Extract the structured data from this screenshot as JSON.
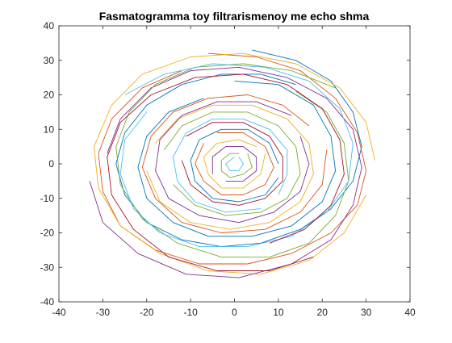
{
  "chart_data": {
    "type": "line",
    "title": "Fasmatogramma toy filtrarismenoy me echo shma",
    "xlabel": "",
    "ylabel": "",
    "xlim": [
      -40,
      40
    ],
    "ylim": [
      -40,
      40
    ],
    "x_ticks": [
      "-40",
      "-30",
      "-20",
      "-10",
      "0",
      "10",
      "20",
      "30",
      "40"
    ],
    "y_ticks": [
      "40",
      "30",
      "20",
      "10",
      "0",
      "-10",
      "-20",
      "-30",
      "-40"
    ],
    "grid": false,
    "legend": "none",
    "description_values": {
      "center": [
        0,
        0
      ],
      "max_radius": 33,
      "dense_core_radius": 12
    },
    "series_colors": [
      "#0072bd",
      "#d95319",
      "#edb120",
      "#7e2f8e",
      "#77ac30",
      "#4dbeee",
      "#a2142f"
    ],
    "series": [
      {
        "points": [
          [
            4,
            33
          ],
          [
            14,
            30
          ],
          [
            22,
            24
          ],
          [
            27,
            15
          ],
          [
            29,
            5
          ],
          [
            27,
            -5
          ],
          [
            22,
            -13
          ],
          [
            15,
            -19
          ],
          [
            6,
            -23
          ],
          [
            -3,
            -24
          ],
          [
            -12,
            -22
          ],
          [
            -20,
            -17
          ],
          [
            -25,
            -9
          ],
          [
            -27,
            0
          ],
          [
            -25,
            9
          ],
          [
            -20,
            17
          ],
          [
            -12,
            23
          ],
          [
            -3,
            26
          ],
          [
            6,
            26
          ],
          [
            14,
            23
          ]
        ]
      },
      {
        "points": [
          [
            -6,
            32
          ],
          [
            5,
            31
          ],
          [
            15,
            27
          ],
          [
            23,
            19
          ],
          [
            28,
            9
          ],
          [
            30,
            -2
          ],
          [
            28,
            -12
          ],
          [
            22,
            -20
          ],
          [
            13,
            -26
          ],
          [
            3,
            -29
          ],
          [
            -8,
            -29
          ],
          [
            -18,
            -25
          ],
          [
            -26,
            -18
          ],
          [
            -30,
            -8
          ],
          [
            -31,
            3
          ],
          [
            -28,
            13
          ],
          [
            -21,
            22
          ],
          [
            -12,
            27
          ]
        ]
      },
      {
        "points": [
          [
            32,
            1
          ],
          [
            30,
            12
          ],
          [
            24,
            22
          ],
          [
            14,
            29
          ],
          [
            2,
            32
          ],
          [
            -10,
            31
          ],
          [
            -21,
            26
          ],
          [
            -28,
            17
          ],
          [
            -32,
            5
          ],
          [
            -31,
            -7
          ],
          [
            -26,
            -18
          ],
          [
            -17,
            -26
          ],
          [
            -6,
            -31
          ],
          [
            6,
            -32
          ],
          [
            17,
            -28
          ],
          [
            25,
            -20
          ],
          [
            30,
            -9
          ]
        ]
      },
      {
        "points": [
          [
            -33,
            -5
          ],
          [
            -30,
            -17
          ],
          [
            -22,
            -26
          ],
          [
            -11,
            -32
          ],
          [
            1,
            -33
          ],
          [
            13,
            -29
          ],
          [
            22,
            -22
          ],
          [
            27,
            -12
          ],
          [
            29,
            -1
          ],
          [
            27,
            10
          ],
          [
            21,
            19
          ],
          [
            12,
            25
          ],
          [
            1,
            28
          ],
          [
            -10,
            27
          ],
          [
            -19,
            22
          ],
          [
            -26,
            13
          ],
          [
            -29,
            3
          ]
        ]
      },
      {
        "points": [
          [
            23,
            22
          ],
          [
            13,
            27
          ],
          [
            2,
            29
          ],
          [
            -9,
            28
          ],
          [
            -18,
            23
          ],
          [
            -24,
            15
          ],
          [
            -27,
            5
          ],
          [
            -26,
            -6
          ],
          [
            -21,
            -16
          ],
          [
            -13,
            -23
          ],
          [
            -3,
            -27
          ],
          [
            8,
            -27
          ],
          [
            17,
            -23
          ],
          [
            23,
            -15
          ],
          [
            26,
            -5
          ],
          [
            25,
            6
          ],
          [
            21,
            15
          ],
          [
            14,
            21
          ]
        ]
      },
      {
        "points": [
          [
            -25,
            20
          ],
          [
            -16,
            26
          ],
          [
            -5,
            29
          ],
          [
            7,
            28
          ],
          [
            17,
            24
          ],
          [
            24,
            16
          ],
          [
            27,
            6
          ],
          [
            26,
            -5
          ],
          [
            21,
            -14
          ],
          [
            13,
            -21
          ],
          [
            3,
            -24
          ],
          [
            -8,
            -24
          ],
          [
            -17,
            -20
          ],
          [
            -23,
            -13
          ],
          [
            -26,
            -3
          ],
          [
            -25,
            7
          ],
          [
            -20,
            15
          ]
        ]
      },
      {
        "points": [
          [
            18,
            -27
          ],
          [
            8,
            -31
          ],
          [
            -4,
            -31
          ],
          [
            -15,
            -27
          ],
          [
            -23,
            -19
          ],
          [
            -28,
            -9
          ],
          [
            -29,
            2
          ],
          [
            -26,
            12
          ],
          [
            -19,
            20
          ],
          [
            -9,
            25
          ],
          [
            2,
            26
          ],
          [
            12,
            23
          ],
          [
            20,
            16
          ],
          [
            24,
            7
          ],
          [
            25,
            -3
          ],
          [
            22,
            -12
          ],
          [
            16,
            -19
          ],
          [
            8,
            -23
          ]
        ]
      },
      {
        "points": [
          [
            0,
            24
          ],
          [
            10,
            23
          ],
          [
            18,
            17
          ],
          [
            22,
            8
          ],
          [
            23,
            -2
          ],
          [
            20,
            -11
          ],
          [
            13,
            -18
          ],
          [
            4,
            -21
          ],
          [
            -6,
            -21
          ],
          [
            -14,
            -17
          ],
          [
            -20,
            -10
          ],
          [
            -22,
            -1
          ],
          [
            -20,
            8
          ],
          [
            -15,
            15
          ],
          [
            -7,
            19
          ]
        ]
      },
      {
        "points": [
          [
            21,
            4
          ],
          [
            20,
            -6
          ],
          [
            15,
            -14
          ],
          [
            7,
            -19
          ],
          [
            -3,
            -20
          ],
          [
            -12,
            -17
          ],
          [
            -18,
            -10
          ],
          [
            -21,
            -1
          ],
          [
            -19,
            8
          ],
          [
            -14,
            15
          ],
          [
            -6,
            19
          ],
          [
            3,
            20
          ],
          [
            11,
            17
          ],
          [
            17,
            11
          ]
        ]
      },
      {
        "points": [
          [
            -20,
            -2
          ],
          [
            -17,
            -11
          ],
          [
            -10,
            -17
          ],
          [
            -1,
            -19
          ],
          [
            8,
            -17
          ],
          [
            15,
            -11
          ],
          [
            18,
            -3
          ],
          [
            17,
            6
          ],
          [
            12,
            13
          ],
          [
            4,
            17
          ],
          [
            -5,
            17
          ],
          [
            -13,
            13
          ],
          [
            -18,
            6
          ]
        ]
      },
      {
        "points": [
          [
            13,
            14
          ],
          [
            5,
            18
          ],
          [
            -4,
            18
          ],
          [
            -12,
            14
          ],
          [
            -17,
            7
          ],
          [
            -18,
            -2
          ],
          [
            -15,
            -10
          ],
          [
            -8,
            -15
          ],
          [
            1,
            -17
          ],
          [
            9,
            -14
          ],
          [
            15,
            -8
          ],
          [
            17,
            0
          ],
          [
            15,
            8
          ]
        ]
      },
      {
        "points": [
          [
            -16,
            4
          ],
          [
            -12,
            11
          ],
          [
            -5,
            15
          ],
          [
            3,
            15
          ],
          [
            10,
            11
          ],
          [
            14,
            5
          ],
          [
            15,
            -3
          ],
          [
            12,
            -10
          ],
          [
            6,
            -14
          ],
          [
            -2,
            -15
          ],
          [
            -9,
            -12
          ],
          [
            -14,
            -6
          ]
        ]
      },
      {
        "points": [
          [
            6,
            -13
          ],
          [
            -2,
            -14
          ],
          [
            -9,
            -11
          ],
          [
            -13,
            -5
          ],
          [
            -14,
            2
          ],
          [
            -11,
            9
          ],
          [
            -5,
            13
          ],
          [
            2,
            13
          ],
          [
            8,
            10
          ],
          [
            12,
            4
          ],
          [
            12,
            -3
          ],
          [
            10,
            -9
          ]
        ]
      },
      {
        "points": [
          [
            -11,
            8
          ],
          [
            -5,
            12
          ],
          [
            2,
            12
          ],
          [
            8,
            8
          ],
          [
            11,
            2
          ],
          [
            11,
            -5
          ],
          [
            7,
            -10
          ],
          [
            1,
            -12
          ],
          [
            -5,
            -11
          ],
          [
            -10,
            -6
          ],
          [
            -12,
            1
          ]
        ]
      },
      {
        "points": [
          [
            10,
            -4
          ],
          [
            7,
            -9
          ],
          [
            1,
            -11
          ],
          [
            -5,
            -10
          ],
          [
            -9,
            -5
          ],
          [
            -10,
            1
          ],
          [
            -8,
            7
          ],
          [
            -3,
            10
          ],
          [
            3,
            10
          ],
          [
            8,
            6
          ],
          [
            10,
            0
          ]
        ]
      },
      {
        "points": [
          [
            -4,
            9
          ],
          [
            2,
            9
          ],
          [
            7,
            5
          ],
          [
            9,
            -1
          ],
          [
            7,
            -6
          ],
          [
            2,
            -9
          ],
          [
            -3,
            -9
          ],
          [
            -7,
            -5
          ],
          [
            -9,
            0
          ],
          [
            -7,
            6
          ]
        ]
      },
      {
        "points": [
          [
            7,
            3
          ],
          [
            6,
            -3
          ],
          [
            2,
            -7
          ],
          [
            -3,
            -7
          ],
          [
            -6,
            -3
          ],
          [
            -7,
            2
          ],
          [
            -4,
            6
          ],
          [
            1,
            7
          ],
          [
            5,
            5
          ]
        ]
      },
      {
        "points": [
          [
            -5,
            -3
          ],
          [
            -5,
            2
          ],
          [
            -2,
            5
          ],
          [
            2,
            5
          ],
          [
            5,
            2
          ],
          [
            5,
            -2
          ],
          [
            2,
            -5
          ],
          [
            -2,
            -5
          ]
        ]
      },
      {
        "points": [
          [
            3,
            3
          ],
          [
            4,
            -1
          ],
          [
            2,
            -3
          ],
          [
            -1,
            -4
          ],
          [
            -3,
            -2
          ],
          [
            -3,
            1
          ],
          [
            -1,
            3
          ],
          [
            1,
            3
          ]
        ]
      },
      {
        "points": [
          [
            1,
            2
          ],
          [
            2,
            0
          ],
          [
            1,
            -2
          ],
          [
            -1,
            -2
          ],
          [
            -2,
            0
          ],
          [
            -1,
            1
          ],
          [
            0,
            2
          ]
        ]
      }
    ]
  }
}
